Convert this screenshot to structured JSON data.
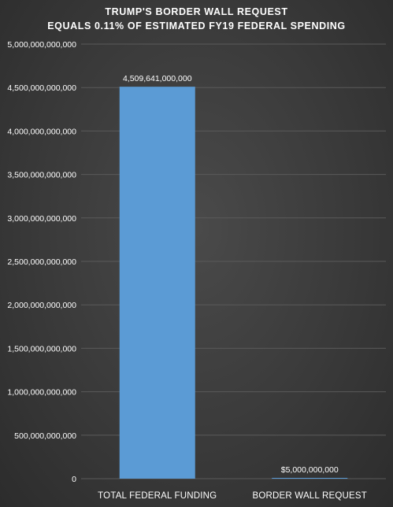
{
  "chart_data": {
    "type": "bar",
    "title": "TRUMP'S BORDER WALL REQUEST",
    "subtitle": "EQUALS 0.11% OF ESTIMATED FY19 FEDERAL SPENDING",
    "categories": [
      "TOTAL FEDERAL FUNDING",
      "BORDER WALL REQUEST"
    ],
    "values": [
      4509641000000,
      5000000000
    ],
    "data_labels": [
      "4,509,641,000,000",
      "$5,000,000,000"
    ],
    "ylim": [
      0,
      5000000000000
    ],
    "yticks": [
      0,
      500000000000,
      1000000000000,
      1500000000000,
      2000000000000,
      2500000000000,
      3000000000000,
      3500000000000,
      4000000000000,
      4500000000000,
      5000000000000
    ],
    "ytick_labels": [
      "0",
      "500,000,000,000",
      "1,000,000,000,000",
      "1,500,000,000,000",
      "2,000,000,000,000",
      "2,500,000,000,000",
      "3,000,000,000,000",
      "3,500,000,000,000",
      "4,000,000,000,000",
      "4,500,000,000,000",
      "5,000,000,000,000"
    ],
    "xlabel": "",
    "ylabel": "",
    "grid": true,
    "bar_color": "#5b9bd5",
    "grid_color": "#5a5a5a"
  }
}
